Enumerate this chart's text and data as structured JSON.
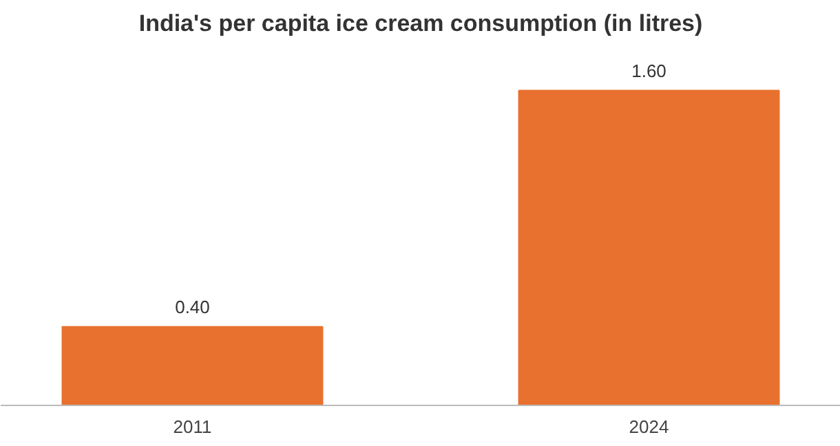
{
  "chart_data": {
    "type": "bar",
    "title": "India's per capita ice cream consumption (in litres)",
    "categories": [
      "2011",
      "2024"
    ],
    "values": [
      0.4,
      1.6
    ],
    "value_labels": [
      "0.40",
      "1.60"
    ],
    "color": "#e8712f",
    "grid": false
  }
}
